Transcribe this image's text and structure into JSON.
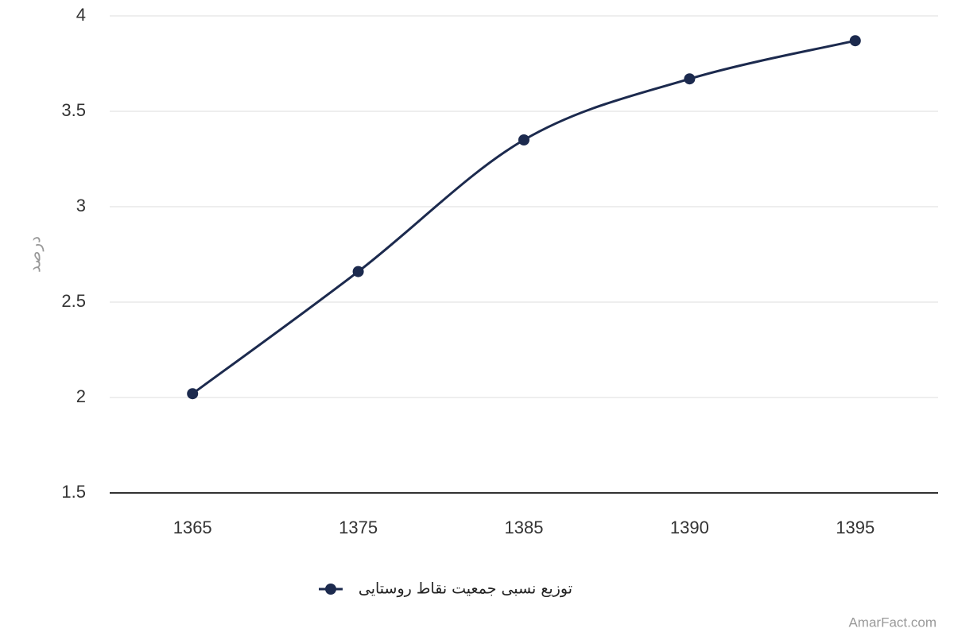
{
  "chart_data": {
    "type": "line",
    "y_label": "درصد",
    "categories": [
      "1365",
      "1375",
      "1385",
      "1390",
      "1395"
    ],
    "series": [
      {
        "name": "توزیع نسبی جمعیت نقاط روستایی",
        "color": "#1c2a4e",
        "values": [
          2.02,
          2.66,
          3.35,
          3.67,
          3.87
        ]
      }
    ],
    "ylim": [
      1.5,
      4
    ],
    "yticks": [
      1.5,
      2,
      2.5,
      3,
      3.5,
      4
    ],
    "grid": true,
    "smooth": true,
    "legend": "bottom",
    "credit": "AmarFact.com"
  }
}
